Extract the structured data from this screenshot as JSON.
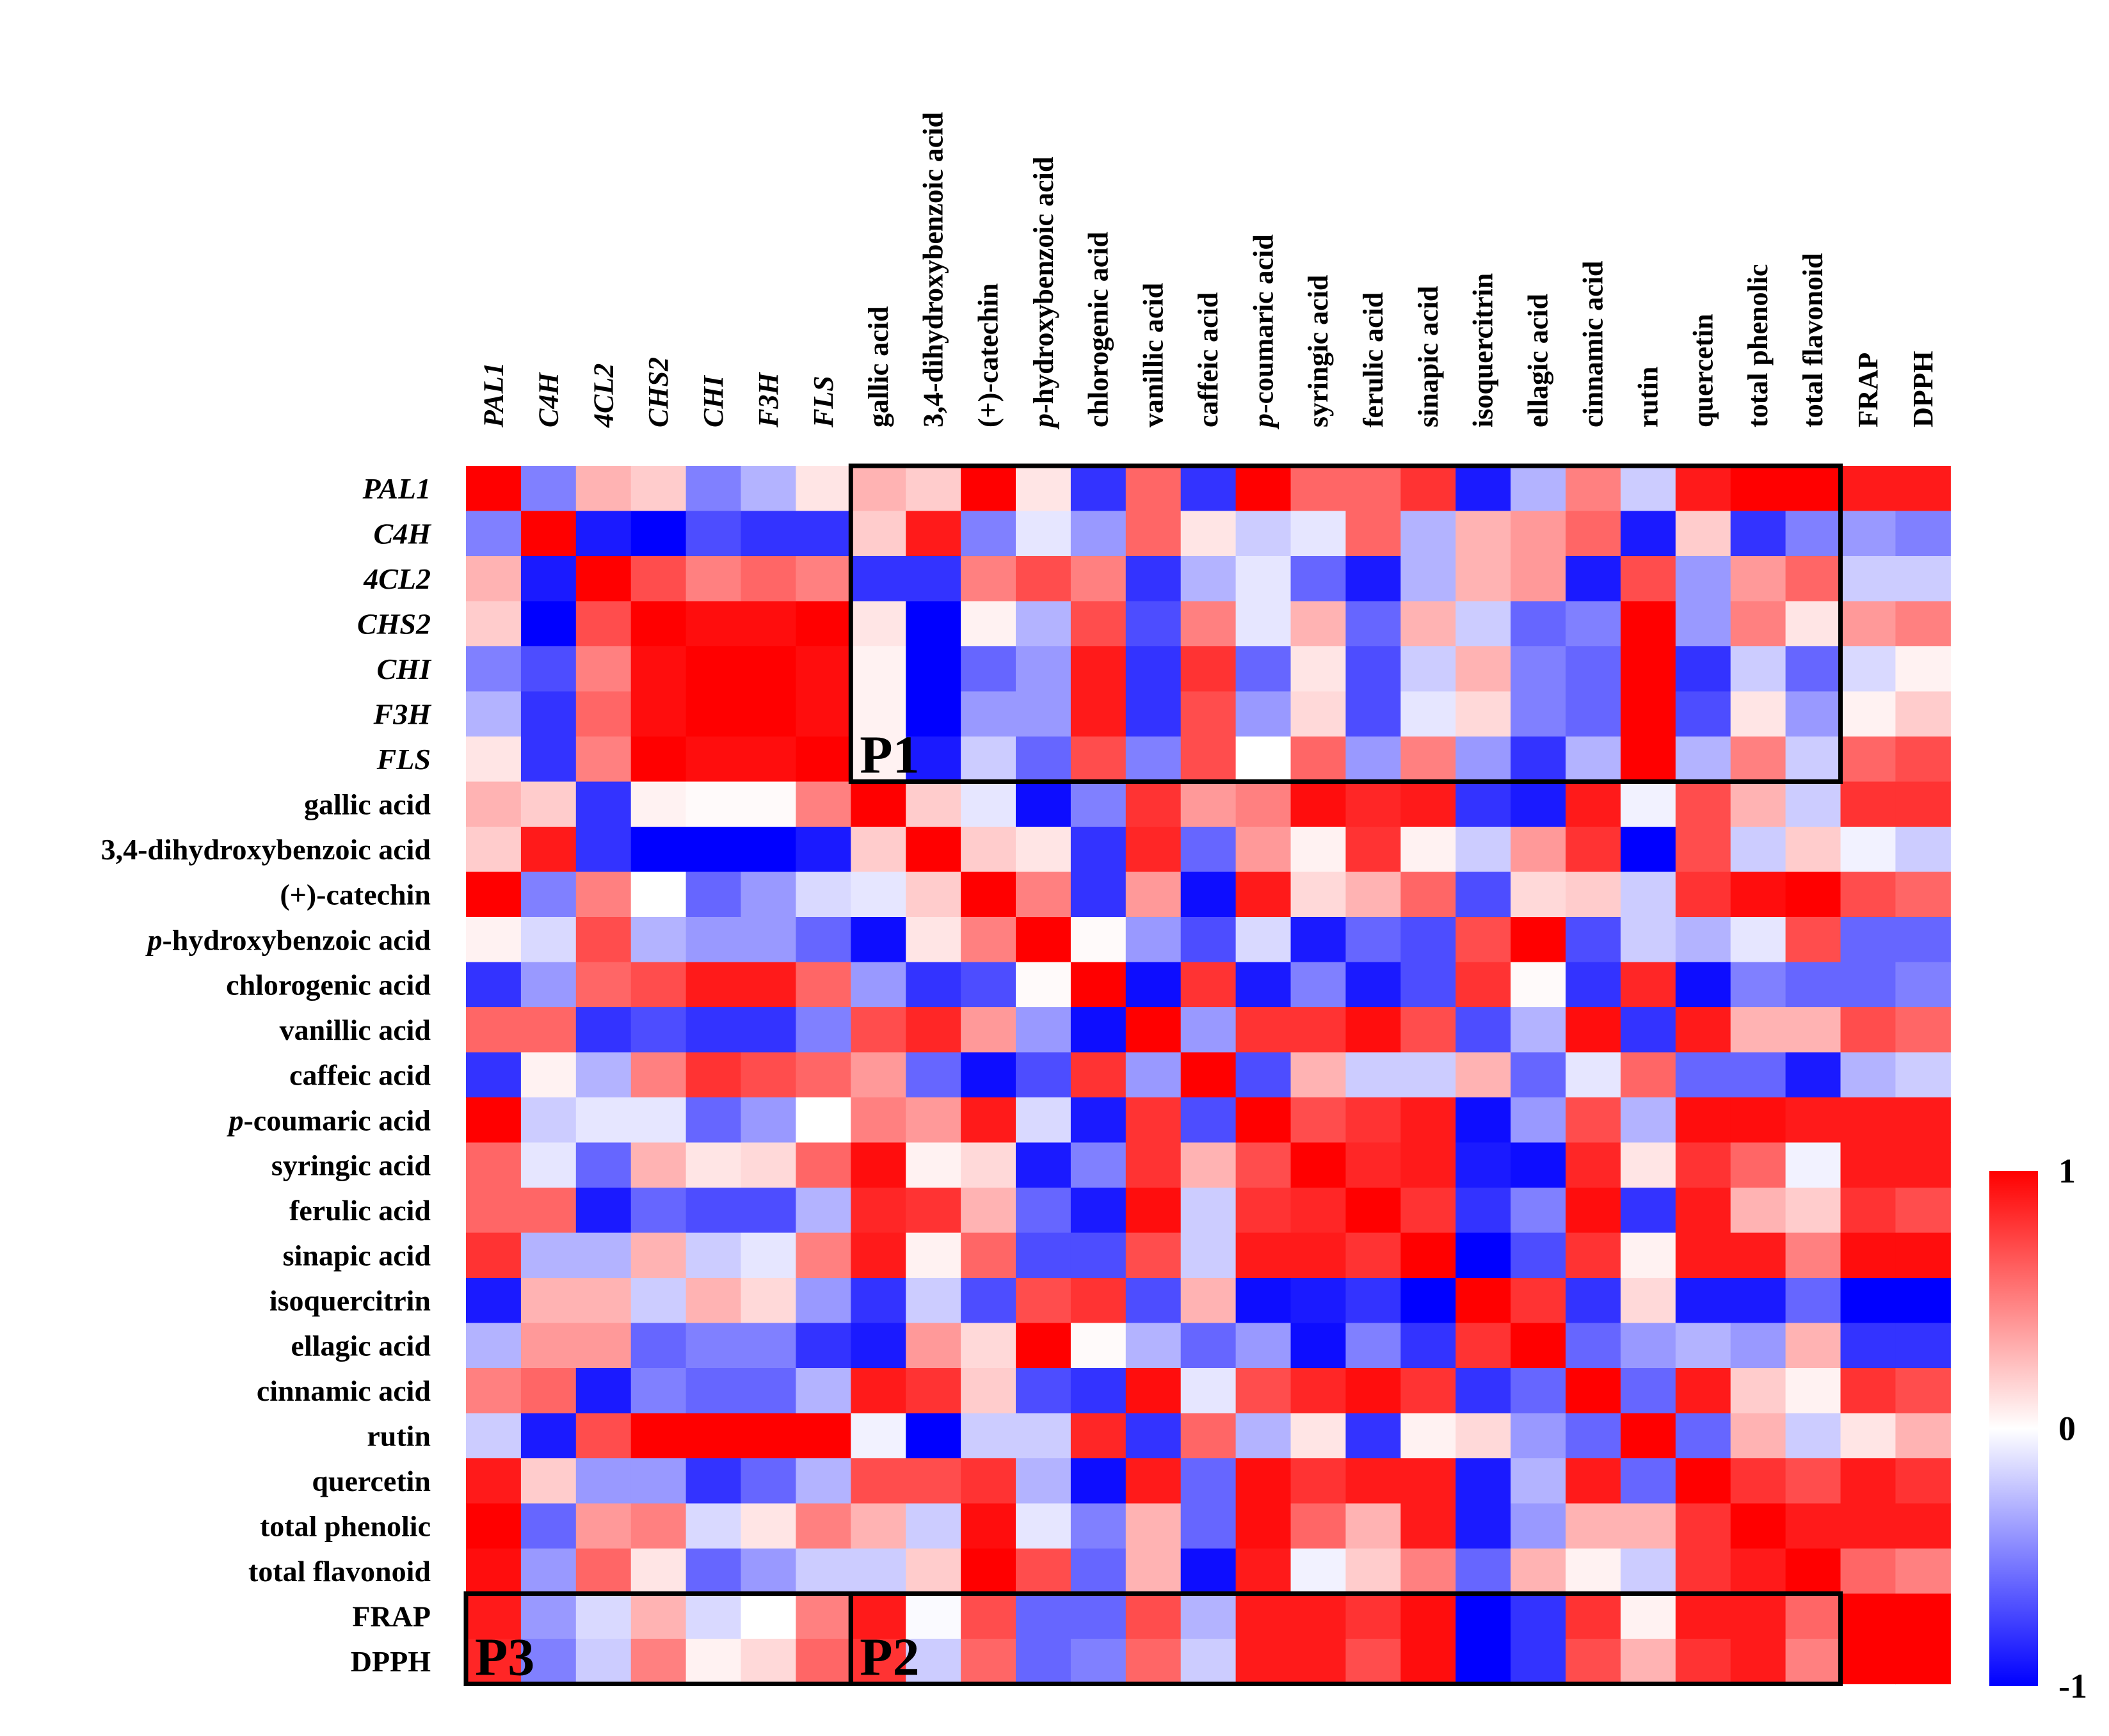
{
  "chart_data": {
    "type": "heatmap",
    "title": "",
    "xlabel": "",
    "ylabel": "",
    "rows": [
      {
        "text": "PAL1",
        "italic": true
      },
      {
        "text": "C4H",
        "italic": true
      },
      {
        "text": "4CL2",
        "italic": true
      },
      {
        "text": "CHS2",
        "italic": true
      },
      {
        "text": "CHI",
        "italic": true
      },
      {
        "text": "F3H",
        "italic": true
      },
      {
        "text": "FLS",
        "italic": true
      },
      {
        "text": "gallic acid"
      },
      {
        "text": "3,4-dihydroxybenzoic acid"
      },
      {
        "text": "(+)-catechin"
      },
      {
        "prefix": "p",
        "text": "-hydroxybenzoic acid"
      },
      {
        "text": "chlorogenic acid"
      },
      {
        "text": "vanillic acid"
      },
      {
        "text": "caffeic acid"
      },
      {
        "prefix": "p",
        "text": "-coumaric acid"
      },
      {
        "text": "syringic acid"
      },
      {
        "text": "ferulic acid"
      },
      {
        "text": "sinapic acid"
      },
      {
        "text": "isoquercitrin"
      },
      {
        "text": "ellagic acid"
      },
      {
        "text": "cinnamic acid"
      },
      {
        "text": "rutin"
      },
      {
        "text": "quercetin"
      },
      {
        "text": "total phenolic"
      },
      {
        "text": "total flavonoid"
      },
      {
        "text": "FRAP"
      },
      {
        "text": "DPPH"
      }
    ],
    "columns": [
      {
        "text": "PAL1",
        "italic": true
      },
      {
        "text": "C4H",
        "italic": true
      },
      {
        "text": "4CL2",
        "italic": true
      },
      {
        "text": "CHS2",
        "italic": true
      },
      {
        "text": "CHI",
        "italic": true
      },
      {
        "text": "F3H",
        "italic": true
      },
      {
        "text": "FLS",
        "italic": true
      },
      {
        "text": "gallic acid"
      },
      {
        "text": "3,4-dihydroxybenzoic acid"
      },
      {
        "text": "(+)-catechin"
      },
      {
        "prefix": "p",
        "text": "-hydroxybenzoic acid"
      },
      {
        "text": "chlorogenic acid"
      },
      {
        "text": "vanillic acid"
      },
      {
        "text": "caffeic acid"
      },
      {
        "prefix": "p",
        "text": "-coumaric acid"
      },
      {
        "text": "syringic acid"
      },
      {
        "text": "ferulic acid"
      },
      {
        "text": "sinapic acid"
      },
      {
        "text": "isoquercitrin"
      },
      {
        "text": "ellagic acid"
      },
      {
        "text": "cinnamic acid"
      },
      {
        "text": "rutin"
      },
      {
        "text": "quercetin"
      },
      {
        "text": "total phenolic"
      },
      {
        "text": "total flavonoid"
      },
      {
        "text": "FRAP"
      },
      {
        "text": "DPPH"
      }
    ],
    "values": [
      [
        1,
        -0.5,
        0.3,
        0.2,
        -0.5,
        -0.3,
        0.1,
        0.3,
        0.2,
        1,
        0.1,
        -0.8,
        0.6,
        -0.8,
        1,
        0.6,
        0.6,
        0.8,
        -0.9,
        -0.3,
        0.5,
        -0.2,
        0.9,
        1,
        1,
        0.9,
        0.9
      ],
      [
        -0.5,
        1,
        -0.9,
        -1,
        -0.7,
        -0.8,
        -0.8,
        0.2,
        0.9,
        -0.5,
        -0.1,
        -0.4,
        0.6,
        0.1,
        -0.2,
        -0.1,
        0.6,
        -0.3,
        0.3,
        0.4,
        0.6,
        -0.9,
        0.2,
        -0.8,
        -0.5,
        -0.4,
        -0.5
      ],
      [
        0.3,
        -0.9,
        1,
        0.7,
        0.5,
        0.6,
        0.5,
        -0.8,
        -0.8,
        0.5,
        0.7,
        0.5,
        -0.8,
        -0.3,
        -0.1,
        -0.6,
        -0.9,
        -0.3,
        0.3,
        0.4,
        -0.9,
        0.7,
        -0.4,
        0.4,
        0.6,
        -0.2,
        -0.2
      ],
      [
        0.2,
        -1,
        0.7,
        1,
        0.95,
        0.95,
        1,
        0.1,
        -1,
        0.05,
        -0.3,
        0.7,
        -0.7,
        0.5,
        -0.1,
        0.3,
        -0.6,
        0.3,
        -0.2,
        -0.6,
        -0.5,
        1,
        -0.4,
        0.5,
        0.1,
        0.4,
        0.5
      ],
      [
        -0.5,
        -0.7,
        0.5,
        0.95,
        1,
        1,
        0.95,
        0.05,
        -1,
        -0.6,
        -0.4,
        0.9,
        -0.8,
        0.8,
        -0.6,
        0.1,
        -0.7,
        -0.2,
        0.3,
        -0.5,
        -0.6,
        1,
        -0.8,
        -0.2,
        -0.6,
        -0.15,
        0.05
      ],
      [
        -0.3,
        -0.8,
        0.6,
        0.95,
        1,
        1,
        0.95,
        0.05,
        -1,
        -0.4,
        -0.4,
        0.9,
        -0.8,
        0.7,
        -0.4,
        0.15,
        -0.7,
        -0.1,
        0.15,
        -0.5,
        -0.6,
        1,
        -0.7,
        0.1,
        -0.4,
        0.05,
        0.2
      ],
      [
        0.1,
        -0.8,
        0.5,
        1,
        0.95,
        0.95,
        1,
        0.05,
        -0.9,
        -0.2,
        -0.6,
        0.7,
        -0.5,
        0.7,
        0.0,
        0.6,
        -0.4,
        0.5,
        -0.4,
        -0.8,
        -0.3,
        1,
        -0.3,
        0.5,
        -0.2,
        0.6,
        0.7
      ],
      [
        0.3,
        0.2,
        -0.8,
        0.05,
        0.02,
        0.02,
        0.5,
        1,
        0.2,
        -0.1,
        -0.95,
        -0.5,
        0.8,
        0.4,
        0.5,
        0.95,
        0.85,
        0.9,
        -0.8,
        -0.9,
        0.9,
        -0.05,
        0.7,
        0.3,
        -0.2,
        0.8,
        0.8
      ],
      [
        0.2,
        0.9,
        -0.8,
        -1,
        -1,
        -1,
        -0.9,
        0.2,
        1,
        0.2,
        0.1,
        -0.8,
        0.85,
        -0.6,
        0.4,
        0.05,
        0.8,
        0.05,
        -0.2,
        0.4,
        0.8,
        -1,
        0.7,
        -0.2,
        0.2,
        -0.05,
        -0.2
      ],
      [
        1,
        -0.5,
        0.5,
        0.0,
        -0.6,
        -0.4,
        -0.15,
        -0.1,
        0.2,
        1,
        0.5,
        -0.8,
        0.4,
        -0.95,
        0.9,
        0.15,
        0.3,
        0.6,
        -0.7,
        0.15,
        0.2,
        -0.2,
        0.8,
        0.95,
        1,
        0.7,
        0.6
      ],
      [
        0.05,
        -0.15,
        0.7,
        -0.3,
        -0.4,
        -0.4,
        -0.6,
        -0.95,
        0.1,
        0.5,
        1,
        0.02,
        -0.4,
        -0.7,
        -0.15,
        -0.9,
        -0.6,
        -0.7,
        0.7,
        1,
        -0.7,
        -0.2,
        -0.3,
        -0.1,
        0.7,
        -0.6,
        -0.6
      ],
      [
        -0.8,
        -0.4,
        0.6,
        0.7,
        0.9,
        0.9,
        0.6,
        -0.4,
        -0.8,
        -0.7,
        0.02,
        1,
        -0.95,
        0.8,
        -0.9,
        -0.5,
        -0.9,
        -0.7,
        0.8,
        0.02,
        -0.8,
        0.85,
        -0.95,
        -0.5,
        -0.6,
        -0.6,
        -0.5
      ],
      [
        0.6,
        0.6,
        -0.8,
        -0.7,
        -0.8,
        -0.8,
        -0.5,
        0.7,
        0.85,
        0.4,
        -0.4,
        -0.95,
        1,
        -0.4,
        0.8,
        0.8,
        0.95,
        0.7,
        -0.7,
        -0.3,
        0.95,
        -0.8,
        0.9,
        0.3,
        0.3,
        0.7,
        0.6
      ],
      [
        -0.8,
        0.05,
        -0.3,
        0.5,
        0.8,
        0.7,
        0.6,
        0.4,
        -0.6,
        -0.95,
        -0.7,
        0.8,
        -0.4,
        1,
        -0.7,
        0.3,
        -0.2,
        -0.2,
        0.3,
        -0.6,
        -0.1,
        0.6,
        -0.6,
        -0.6,
        -0.9,
        -0.3,
        -0.2
      ],
      [
        1,
        -0.2,
        -0.1,
        -0.1,
        -0.6,
        -0.4,
        0.0,
        0.5,
        0.4,
        0.9,
        -0.15,
        -0.9,
        0.8,
        -0.7,
        1,
        0.7,
        0.8,
        0.9,
        -0.95,
        -0.4,
        0.7,
        -0.3,
        0.95,
        0.95,
        0.9,
        0.9,
        0.9
      ],
      [
        0.6,
        -0.1,
        -0.6,
        0.3,
        0.1,
        0.15,
        0.6,
        0.95,
        0.05,
        0.15,
        -0.9,
        -0.5,
        0.8,
        0.3,
        0.7,
        1,
        0.85,
        0.9,
        -0.9,
        -0.95,
        0.85,
        0.1,
        0.8,
        0.6,
        -0.05,
        0.9,
        0.9
      ],
      [
        0.6,
        0.6,
        -0.9,
        -0.6,
        -0.7,
        -0.7,
        -0.3,
        0.85,
        0.8,
        0.3,
        -0.6,
        -0.9,
        0.95,
        -0.2,
        0.8,
        0.85,
        1,
        0.8,
        -0.8,
        -0.5,
        0.95,
        -0.8,
        0.9,
        0.3,
        0.2,
        0.8,
        0.7
      ],
      [
        0.8,
        -0.3,
        -0.3,
        0.3,
        -0.2,
        -0.1,
        0.5,
        0.9,
        0.05,
        0.6,
        -0.7,
        -0.7,
        0.7,
        -0.2,
        0.9,
        0.9,
        0.8,
        1,
        -1,
        -0.7,
        0.8,
        0.05,
        0.9,
        0.9,
        0.5,
        0.95,
        0.95
      ],
      [
        -0.9,
        0.3,
        0.3,
        -0.2,
        0.3,
        0.15,
        -0.4,
        -0.8,
        -0.2,
        -0.7,
        0.7,
        0.8,
        -0.7,
        0.3,
        -0.95,
        -0.9,
        -0.8,
        -1,
        1,
        0.8,
        -0.8,
        0.15,
        -0.9,
        -0.9,
        -0.6,
        -1,
        -1
      ],
      [
        -0.3,
        0.4,
        0.4,
        -0.6,
        -0.5,
        -0.5,
        -0.8,
        -0.9,
        0.4,
        0.15,
        1,
        0.02,
        -0.3,
        -0.6,
        -0.4,
        -0.95,
        -0.5,
        -0.8,
        0.8,
        1,
        -0.6,
        -0.4,
        -0.3,
        -0.4,
        0.3,
        -0.8,
        -0.8
      ],
      [
        0.5,
        0.6,
        -0.9,
        -0.5,
        -0.6,
        -0.6,
        -0.3,
        0.9,
        0.8,
        0.2,
        -0.7,
        -0.8,
        0.95,
        -0.1,
        0.7,
        0.85,
        0.95,
        0.8,
        -0.8,
        -0.6,
        1,
        -0.6,
        0.9,
        0.2,
        0.05,
        0.8,
        0.7
      ],
      [
        -0.2,
        -0.9,
        0.7,
        1,
        1,
        1,
        1,
        -0.05,
        -1,
        -0.2,
        -0.2,
        0.85,
        -0.8,
        0.6,
        -0.3,
        0.1,
        -0.8,
        0.05,
        0.15,
        -0.4,
        -0.6,
        1,
        -0.6,
        0.3,
        -0.2,
        0.1,
        0.3
      ],
      [
        0.9,
        0.2,
        -0.4,
        -0.4,
        -0.8,
        -0.6,
        -0.3,
        0.7,
        0.7,
        0.8,
        -0.3,
        -0.95,
        0.9,
        -0.6,
        0.95,
        0.8,
        0.9,
        0.9,
        -0.9,
        -0.3,
        0.9,
        -0.6,
        1,
        0.8,
        0.7,
        0.9,
        0.8
      ],
      [
        1,
        -0.6,
        0.4,
        0.5,
        -0.15,
        0.1,
        0.5,
        0.3,
        -0.2,
        0.95,
        -0.1,
        -0.5,
        0.3,
        -0.6,
        0.95,
        0.6,
        0.3,
        0.9,
        -0.9,
        -0.4,
        0.3,
        0.3,
        0.8,
        1,
        0.9,
        0.9,
        0.9
      ],
      [
        0.95,
        -0.4,
        0.6,
        0.1,
        -0.6,
        -0.4,
        -0.2,
        -0.2,
        0.2,
        1,
        0.7,
        -0.6,
        0.3,
        -0.95,
        0.9,
        -0.05,
        0.2,
        0.5,
        -0.6,
        0.3,
        0.05,
        -0.2,
        0.8,
        0.9,
        1,
        0.6,
        0.5
      ],
      [
        0.9,
        -0.4,
        -0.15,
        0.3,
        -0.15,
        0.0,
        0.5,
        0.9,
        -0.02,
        0.7,
        -0.6,
        -0.6,
        0.7,
        -0.3,
        0.9,
        0.9,
        0.8,
        0.95,
        -1,
        -0.8,
        0.8,
        0.05,
        0.9,
        0.9,
        0.6,
        1,
        1
      ],
      [
        0.85,
        -0.5,
        -0.2,
        0.5,
        0.05,
        0.15,
        0.6,
        0.8,
        -0.2,
        0.6,
        -0.6,
        -0.5,
        0.6,
        -0.2,
        0.9,
        0.9,
        0.7,
        0.95,
        -1,
        -0.8,
        0.7,
        0.3,
        0.8,
        0.9,
        0.5,
        1,
        1
      ]
    ],
    "scale_min": -1,
    "scale_max": 1,
    "colorbar_ticks": [
      "1",
      "0",
      "-1"
    ],
    "colors": {
      "low": "#0000ff",
      "mid": "#ffffff",
      "high": "#ff0000"
    },
    "regions": [
      {
        "label": "P1",
        "row_start": 0,
        "row_end": 6,
        "col_start": 7,
        "col_end": 24
      },
      {
        "label": "P2",
        "row_start": 25,
        "row_end": 26,
        "col_start": 7,
        "col_end": 24
      },
      {
        "label": "P3",
        "row_start": 25,
        "row_end": 26,
        "col_start": 0,
        "col_end": 6
      }
    ]
  }
}
